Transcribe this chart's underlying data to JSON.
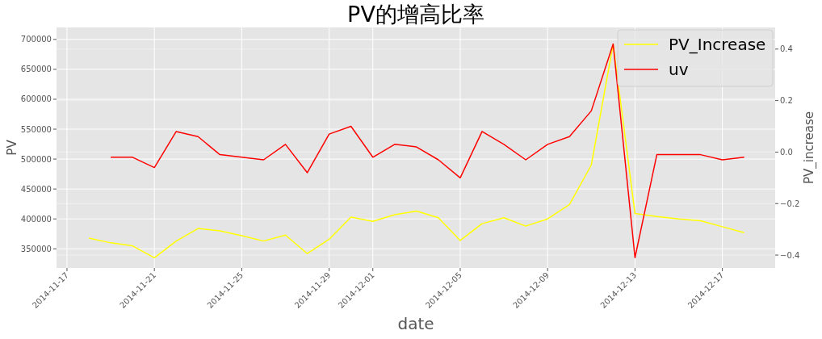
{
  "chart_data": {
    "type": "line",
    "title": "PV的增高比率",
    "xlabel": "date",
    "ylabel": "PV",
    "y2label": "PV_increase",
    "x": [
      "2014-11-18",
      "2014-11-19",
      "2014-11-20",
      "2014-11-21",
      "2014-11-22",
      "2014-11-23",
      "2014-11-24",
      "2014-11-25",
      "2014-11-26",
      "2014-11-27",
      "2014-11-28",
      "2014-11-29",
      "2014-11-30",
      "2014-12-01",
      "2014-12-02",
      "2014-12-03",
      "2014-12-04",
      "2014-12-05",
      "2014-12-06",
      "2014-12-07",
      "2014-12-08",
      "2014-12-09",
      "2014-12-10",
      "2014-12-11",
      "2014-12-12",
      "2014-12-13",
      "2014-12-14",
      "2014-12-15",
      "2014-12-16",
      "2014-12-17",
      "2014-12-18"
    ],
    "series": [
      {
        "name": "PV_Increase",
        "color": "#ffff00",
        "values": [
          368000,
          360000,
          355000,
          335000,
          363000,
          384000,
          380000,
          372000,
          363000,
          373000,
          342000,
          366000,
          403000,
          396000,
          407000,
          413000,
          402000,
          364000,
          392000,
          402000,
          388000,
          400000,
          424000,
          490000,
          692000,
          409000,
          404000,
          400000,
          397000,
          387000,
          377000
        ]
      },
      {
        "name": "uv",
        "color": "#ff0000",
        "axis": "y2",
        "values": [
          null,
          -0.02,
          -0.02,
          -0.06,
          0.08,
          0.06,
          -0.01,
          -0.02,
          -0.03,
          0.03,
          -0.08,
          0.07,
          0.1,
          -0.02,
          0.03,
          0.02,
          -0.03,
          -0.1,
          0.08,
          0.03,
          -0.03,
          0.03,
          0.06,
          0.16,
          0.42,
          -0.41,
          -0.01,
          -0.01,
          -0.01,
          -0.03,
          -0.02
        ]
      }
    ],
    "xlim": [
      "2014-11-16T12:30",
      "2014-12-19T10:00"
    ],
    "xticks": [
      "2014-11-17",
      "2014-11-21",
      "2014-11-25",
      "2014-11-29",
      "2014-12-01",
      "2014-12-05",
      "2014-12-09",
      "2014-12-13",
      "2014-12-17"
    ],
    "ylim": [
      318000,
      720000
    ],
    "yticks": [
      350000,
      400000,
      450000,
      500000,
      550000,
      600000,
      650000,
      700000
    ],
    "y2lim": [
      -0.45,
      0.484
    ],
    "y2ticks": [
      {
        "value": -0.4,
        "label": "−0.4"
      },
      {
        "value": -0.2,
        "label": "−0.2"
      },
      {
        "value": 0,
        "label": "0.0"
      },
      {
        "value": 0.2,
        "label": "0.2"
      },
      {
        "value": 0.4,
        "label": "0.4"
      }
    ],
    "grid": true,
    "legend": "top right"
  }
}
